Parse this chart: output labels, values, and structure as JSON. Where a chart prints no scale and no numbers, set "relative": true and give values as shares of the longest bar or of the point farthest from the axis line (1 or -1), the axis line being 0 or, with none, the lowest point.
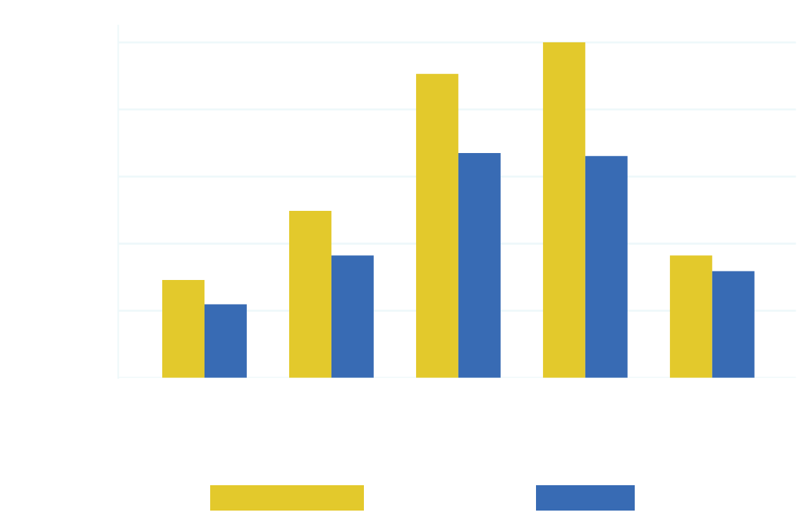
{
  "chart_data": {
    "type": "bar",
    "relative": true,
    "categories": [
      null,
      null,
      null,
      null,
      null
    ],
    "series": [
      {
        "color": "#e3c92c",
        "values": [
          0.292,
          0.498,
          0.906,
          1,
          0.365
        ]
      },
      {
        "color": "#386bb4",
        "values": [
          0.219,
          0.365,
          0.67,
          0.661,
          0.318
        ]
      }
    ],
    "grid": "y"
  }
}
